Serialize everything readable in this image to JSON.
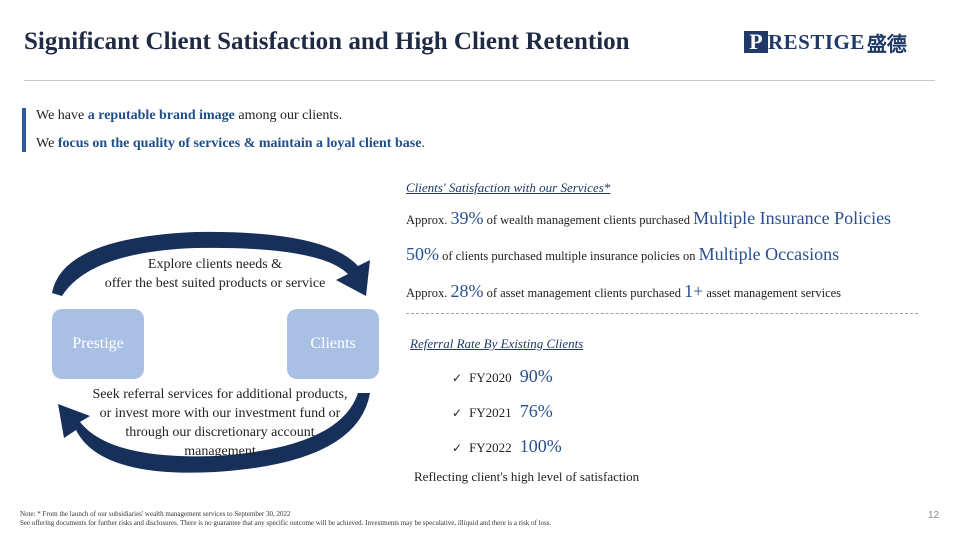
{
  "header": {
    "title": "Significant Client Satisfaction and High Client Retention",
    "logo_letter": "P",
    "logo_rest": "RESTIGE",
    "logo_cn": "盛德"
  },
  "intro": {
    "line1_pre": "We have ",
    "line1_bold": "a reputable brand image",
    "line1_post": " among our clients.",
    "line2_pre": "We ",
    "line2_bold": "focus on the quality of services & maintain a loyal client base",
    "line2_post": "."
  },
  "cycle": {
    "top_text_1": "Explore clients needs &",
    "top_text_2": "offer the best suited products or service",
    "left_box": "Prestige",
    "right_box": "Clients",
    "bottom_text_1": "Seek referral services for additional products,",
    "bottom_text_2": "or invest more with our investment fund or",
    "bottom_text_3": "through our discretionary account",
    "bottom_text_4": "management"
  },
  "satisfaction": {
    "heading": "Clients' Satisfaction with our Services*",
    "stat1_pre": "Approx. ",
    "stat1_big": "39%",
    "stat1_mid": " of wealth management clients purchased ",
    "stat1_big2": "Multiple Insurance Policies",
    "stat2_big": "50%",
    "stat2_mid": " of clients purchased multiple insurance policies on ",
    "stat2_big2": "Multiple Occasions",
    "stat3_pre": "Approx. ",
    "stat3_big": "28%",
    "stat3_mid": " of asset management clients purchased ",
    "stat3_big2": "1+",
    "stat3_post": " asset management services"
  },
  "referral": {
    "heading": "Referral Rate By Existing Clients",
    "check_icon": "check-icon",
    "items": [
      {
        "year": "FY2020",
        "value": "90%"
      },
      {
        "year": "FY2021",
        "value": "76%"
      },
      {
        "year": "FY2022",
        "value": "100%"
      }
    ],
    "footer": "Reflecting client's high level of satisfaction"
  },
  "footnote": {
    "line1": "Note: * From the launch of our subsidiaries' wealth management services to September 30, 2022",
    "line2": "See offering documents for further risks and disclosures. There is no guarantee that any specific outcome will be achieved. Investments may be speculative, illiquid and there is a risk of loss."
  },
  "page_number": "12",
  "colors": {
    "navy": "#1f3a68",
    "accent_blue": "#2a5090",
    "box_blue": "#a9bfe4",
    "arc_navy": "#17305a"
  }
}
